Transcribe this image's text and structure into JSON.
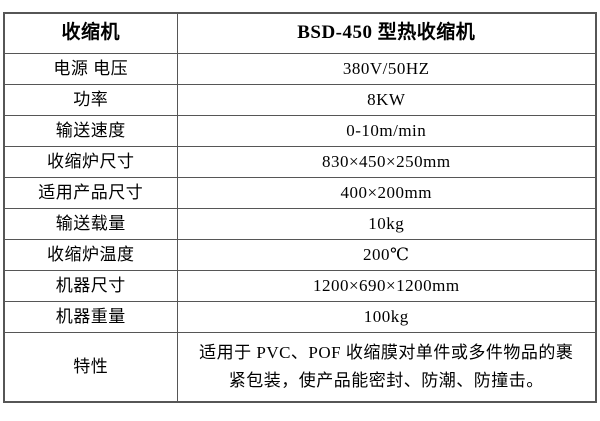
{
  "table": {
    "header": {
      "label": "收缩机",
      "value": "BSD-450 型热收缩机"
    },
    "rows": [
      {
        "label": "电源 电压",
        "value": "380V/50HZ"
      },
      {
        "label": "功率",
        "value": "8KW"
      },
      {
        "label": "输送速度",
        "value": "0-10m/min"
      },
      {
        "label": "收缩炉尺寸",
        "value": "830×450×250mm"
      },
      {
        "label": "适用产品尺寸",
        "value": "400×200mm"
      },
      {
        "label": "输送载量",
        "value": "10kg"
      },
      {
        "label": "收缩炉温度",
        "value": "200℃"
      },
      {
        "label": "机器尺寸",
        "value": "1200×690×1200mm"
      },
      {
        "label": "机器重量",
        "value": "100kg"
      }
    ],
    "feature": {
      "label": "特性",
      "value": "适用于 PVC、POF 收缩膜对单件或多件物品的裹紧包装，使产品能密封、防潮、防撞击。"
    }
  },
  "colors": {
    "border": "#565656",
    "text": "#000000",
    "background": "#ffffff"
  }
}
